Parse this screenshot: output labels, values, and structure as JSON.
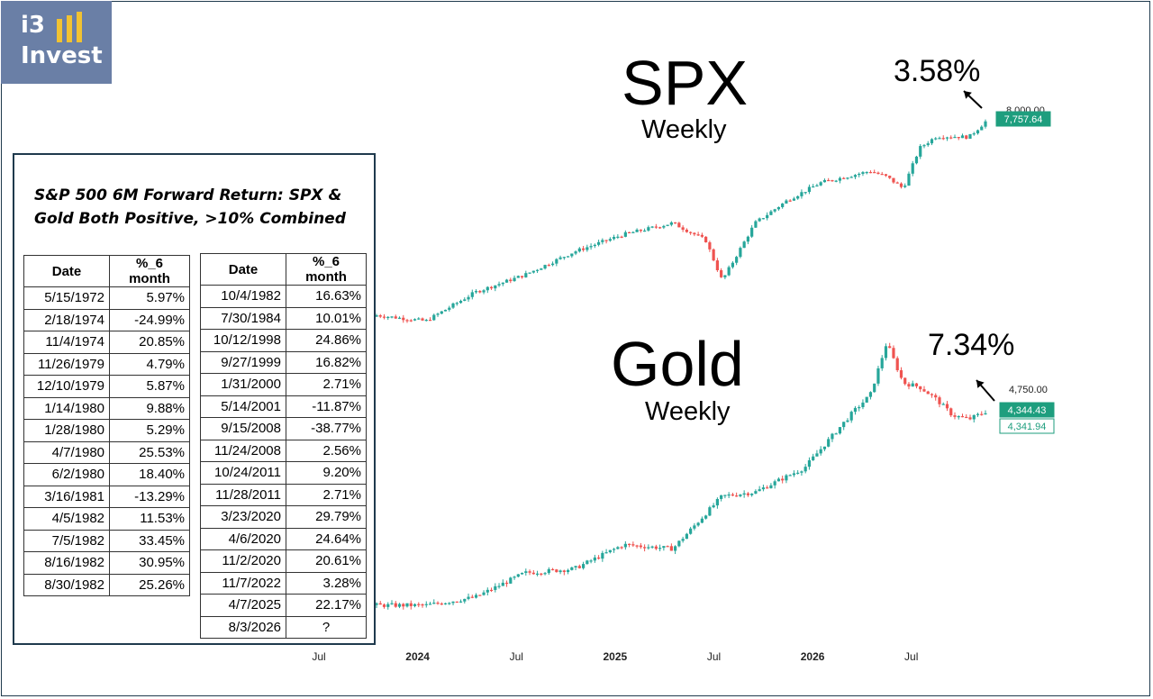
{
  "logo": {
    "line1": "i3",
    "line2": "Invest"
  },
  "spx": {
    "title": "SPX",
    "subtitle": "Weekly",
    "change": "3.58%",
    "level_label": "8,000.00",
    "last_price": "7,757.64"
  },
  "gold": {
    "title": "Gold",
    "subtitle": "Weekly",
    "change": "7.34%",
    "level_label": "4,750.00",
    "last_price": "4,344.43",
    "prev_price": "4,341.94"
  },
  "colors": {
    "up": "#26a69a",
    "down": "#ef5350",
    "price_tag": "#1e9e7e",
    "logo_bg": "#6a7fa6",
    "logo_bars": "#f1c232"
  },
  "x_axis": {
    "ticks": [
      "Jul",
      "2024",
      "Jul",
      "2025",
      "Jul",
      "2026",
      "Jul"
    ]
  },
  "table": {
    "title": "S&P 500 6M Forward Return: SPX & Gold Both Positive, >10% Combined",
    "headers": [
      "Date",
      "%_6 month"
    ],
    "left_rows": [
      [
        "5/15/1972",
        "5.97%"
      ],
      [
        "2/18/1974",
        "-24.99%"
      ],
      [
        "11/4/1974",
        "20.85%"
      ],
      [
        "11/26/1979",
        "4.79%"
      ],
      [
        "12/10/1979",
        "5.87%"
      ],
      [
        "1/14/1980",
        "9.88%"
      ],
      [
        "1/28/1980",
        "5.29%"
      ],
      [
        "4/7/1980",
        "25.53%"
      ],
      [
        "6/2/1980",
        "18.40%"
      ],
      [
        "3/16/1981",
        "-13.29%"
      ],
      [
        "4/5/1982",
        "11.53%"
      ],
      [
        "7/5/1982",
        "33.45%"
      ],
      [
        "8/16/1982",
        "30.95%"
      ],
      [
        "8/30/1982",
        "25.26%"
      ]
    ],
    "right_rows": [
      [
        "10/4/1982",
        "16.63%"
      ],
      [
        "7/30/1984",
        "10.01%"
      ],
      [
        "10/12/1998",
        "24.86%"
      ],
      [
        "9/27/1999",
        "16.82%"
      ],
      [
        "1/31/2000",
        "2.71%"
      ],
      [
        "5/14/2001",
        "-11.87%"
      ],
      [
        "9/15/2008",
        "-38.77%"
      ],
      [
        "11/24/2008",
        "2.56%"
      ],
      [
        "10/24/2011",
        "9.20%"
      ],
      [
        "11/28/2011",
        "2.71%"
      ],
      [
        "3/23/2020",
        "29.79%"
      ],
      [
        "4/6/2020",
        "24.64%"
      ],
      [
        "11/2/2020",
        "20.61%"
      ],
      [
        "11/7/2022",
        "3.28%"
      ],
      [
        "4/7/2025",
        "22.17%"
      ],
      [
        "8/3/2026",
        "?"
      ]
    ]
  },
  "chart_data": [
    {
      "type": "line",
      "series": [
        {
          "name": "SPX",
          "x": [
            "2023-07",
            "2023-10",
            "2024-01",
            "2024-04",
            "2024-07",
            "2024-10",
            "2025-01",
            "2025-03",
            "2025-04",
            "2025-06",
            "2025-08",
            "2025-10",
            "2026-01",
            "2026-02",
            "2026-03",
            "2026-04",
            "2026-05",
            "2026-06",
            "2026-07",
            "2026-08"
          ],
          "values": [
            4400,
            4300,
            4800,
            5100,
            5500,
            5800,
            6000,
            5700,
            5000,
            6000,
            6400,
            6700,
            6900,
            6800,
            6600,
            7300,
            7500,
            7500,
            7490,
            7757.64
          ]
        }
      ],
      "price_label": 7757.64,
      "level_line": 8000
    },
    {
      "type": "line",
      "series": [
        {
          "name": "Gold",
          "x": [
            "2023-07",
            "2023-10",
            "2024-01",
            "2024-04",
            "2024-07",
            "2024-10",
            "2025-01",
            "2025-04",
            "2025-06",
            "2025-09",
            "2025-12",
            "2026-01",
            "2026-02",
            "2026-03",
            "2026-04",
            "2026-05",
            "2026-06",
            "2026-07",
            "2026-08"
          ],
          "values": [
            1950,
            1950,
            2050,
            2350,
            2400,
            2700,
            2650,
            3300,
            3350,
            3650,
            4350,
            4550,
            5200,
            4700,
            4650,
            4500,
            4300,
            4250,
            4344.43
          ]
        }
      ],
      "price_label": 4344.43,
      "level_line": 4750
    }
  ]
}
